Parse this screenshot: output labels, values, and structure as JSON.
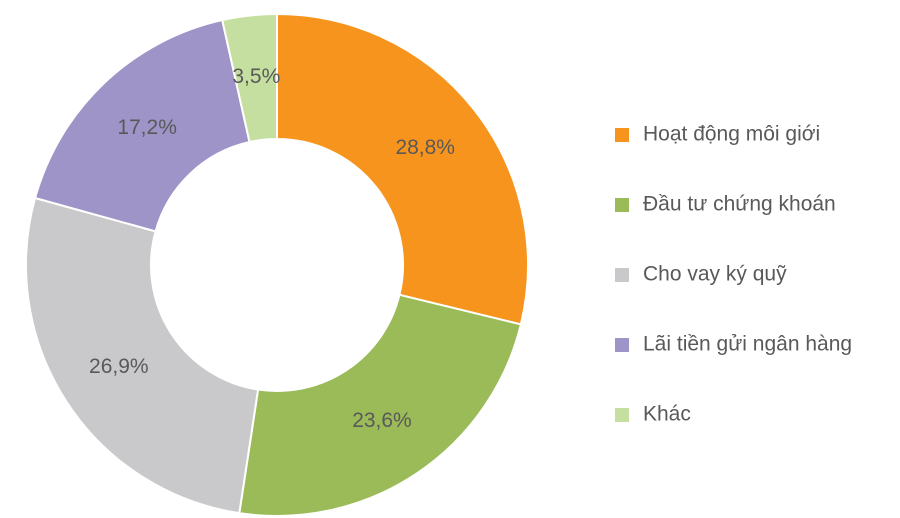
{
  "chart_data": {
    "type": "donut",
    "categories": [
      "Hoạt động môi giới",
      "Đầu tư chứng khoán",
      "Cho vay ký quỹ",
      "Lãi tiền gửi ngân hàng",
      "Khác"
    ],
    "values": [
      28.8,
      23.6,
      26.9,
      17.2,
      3.5
    ],
    "value_labels": [
      "28,8%",
      "23,6%",
      "26,9%",
      "17,2%",
      "3,5%"
    ],
    "colors": [
      "#f7941d",
      "#9bbb59",
      "#c9c9cb",
      "#9e94c8",
      "#c5dfa0"
    ],
    "legend": "right"
  }
}
